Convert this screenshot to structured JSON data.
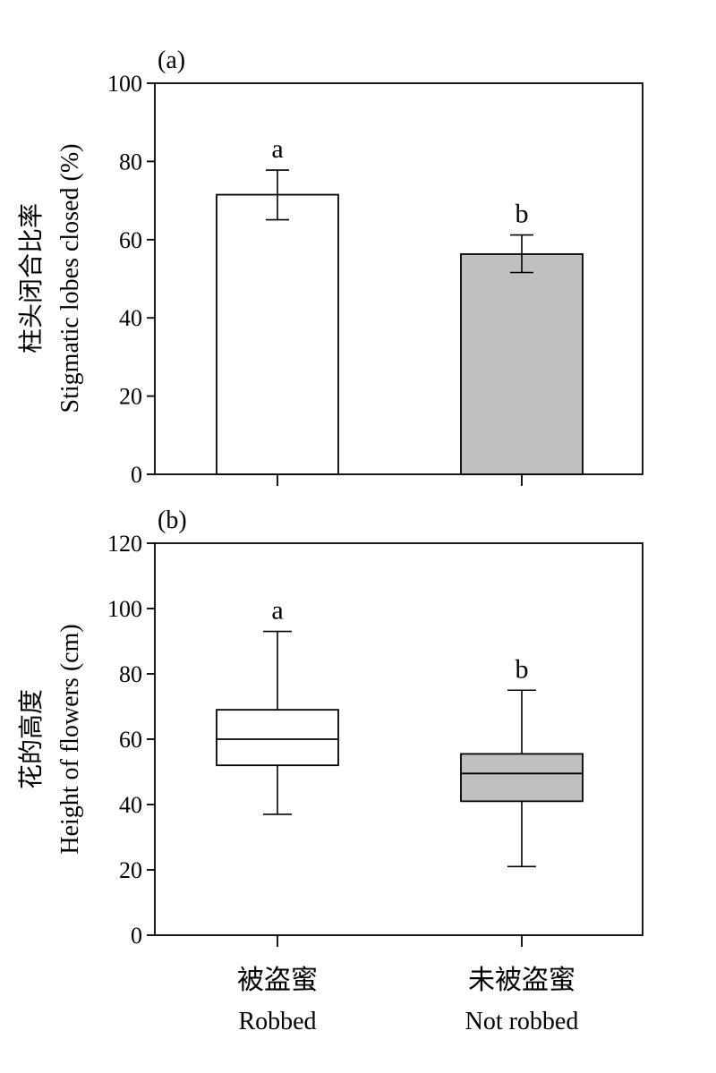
{
  "chart_data": [
    {
      "type": "bar",
      "panel_label": "(a)",
      "ylabel_zh": "柱头闭合比率",
      "ylabel": "Stigmatic lobes closed (%)",
      "categories": [
        "Robbed",
        "Not robbed"
      ],
      "values": [
        71.5,
        56.3
      ],
      "error_upper": [
        77.8,
        61.2
      ],
      "error_lower": [
        65.1,
        51.6
      ],
      "ylim": [
        0,
        100
      ],
      "yticks": [
        0,
        20,
        40,
        60,
        80,
        100
      ],
      "significance": [
        "a",
        "b"
      ],
      "colors": [
        "#ffffff",
        "#c0c0c0"
      ],
      "grid": false
    },
    {
      "type": "box",
      "panel_label": "(b)",
      "ylabel_zh": "花的高度",
      "ylabel": "Height of flowers (cm)",
      "categories": [
        "Robbed",
        "Not robbed"
      ],
      "categories_zh": [
        "被盗蜜",
        "未被盗蜜"
      ],
      "boxes": [
        {
          "min": 37,
          "q1": 52,
          "median": 60,
          "q3": 69,
          "max": 93
        },
        {
          "min": 21,
          "q1": 41,
          "median": 49.5,
          "q3": 55.5,
          "max": 75
        }
      ],
      "ylim": [
        0,
        120
      ],
      "yticks": [
        0,
        20,
        40,
        60,
        80,
        100,
        120
      ],
      "significance": [
        "a",
        "b"
      ],
      "colors": [
        "#ffffff",
        "#c0c0c0"
      ],
      "grid": false
    }
  ]
}
